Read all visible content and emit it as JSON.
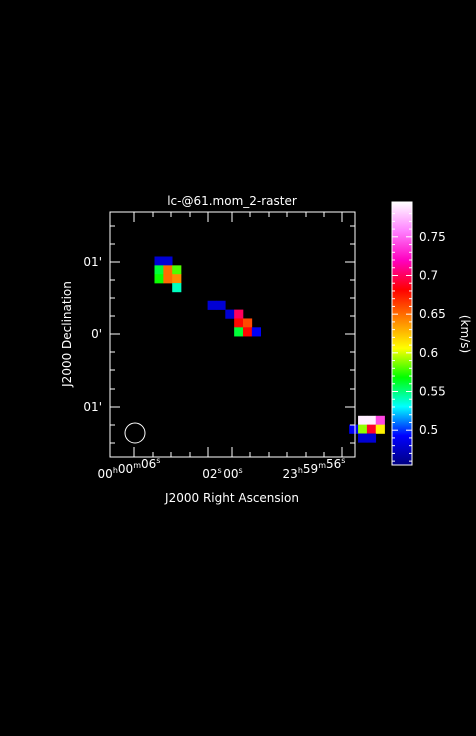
{
  "chart_data": {
    "type": "heatmap",
    "title": "lc-@61.mom_2-raster",
    "xlabel": "J2000 Right Ascension",
    "ylabel": "J2000 Declination",
    "x_ticks": [
      {
        "h": "00",
        "m": "00",
        "s": "06",
        "pos": 0
      },
      {
        "h": "",
        "m": "",
        "s": "02",
        "pos": 1
      },
      {
        "h": "",
        "m": "",
        "s": "00",
        "pos": 2
      },
      {
        "h": "23",
        "m": "59",
        "s": "56",
        "pos": 3
      }
    ],
    "y_ticks": [
      {
        "label": "01'",
        "pos": 1
      },
      {
        "label": "0'",
        "pos": 0
      },
      {
        "label": "01'",
        "pos": -1
      }
    ],
    "colorbar": {
      "label": "(km/s)",
      "min": 0.455,
      "max": 0.795,
      "ticks": [
        {
          "value": 0.5,
          "label": "0.5"
        },
        {
          "value": 0.55,
          "label": "0.55"
        },
        {
          "value": 0.6,
          "label": "0.6"
        },
        {
          "value": 0.65,
          "label": "0.65"
        },
        {
          "value": 0.7,
          "label": "0.7"
        },
        {
          "value": 0.75,
          "label": "0.75"
        }
      ],
      "colors": [
        "#000080",
        "#0000ff",
        "#00ffff",
        "#00ff00",
        "#ffff00",
        "#ff8000",
        "#ff0000",
        "#ff00c0",
        "#ff80ff",
        "#ffffff"
      ]
    },
    "pixels": [
      {
        "col": 0,
        "row": 0,
        "value": 0.48
      },
      {
        "col": 1,
        "row": 0,
        "value": 0.48
      },
      {
        "col": 0,
        "row": 1,
        "value": 0.56
      },
      {
        "col": 1,
        "row": 1,
        "value": 0.65
      },
      {
        "col": 2,
        "row": 1,
        "value": 0.58
      },
      {
        "col": 0,
        "row": 2,
        "value": 0.57
      },
      {
        "col": 1,
        "row": 2,
        "value": 0.65
      },
      {
        "col": 2,
        "row": 2,
        "value": 0.64
      },
      {
        "col": 2,
        "row": 3,
        "value": 0.54
      },
      {
        "col": 6,
        "row": 5,
        "value": 0.48
      },
      {
        "col": 7,
        "row": 5,
        "value": 0.48
      },
      {
        "col": 8,
        "row": 6,
        "value": 0.48
      },
      {
        "col": 9,
        "row": 6,
        "value": 0.7
      },
      {
        "col": 9,
        "row": 7,
        "value": 0.68
      },
      {
        "col": 10,
        "row": 7,
        "value": 0.66
      },
      {
        "col": 9,
        "row": 8,
        "value": 0.56
      },
      {
        "col": 10,
        "row": 8,
        "value": 0.68
      },
      {
        "col": 11,
        "row": 8,
        "value": 0.49
      },
      {
        "col": 23,
        "row": 18,
        "value": 0.79
      },
      {
        "col": 24,
        "row": 18,
        "value": 0.79
      },
      {
        "col": 25,
        "row": 18,
        "value": 0.74
      },
      {
        "col": 22,
        "row": 19,
        "value": 0.49
      },
      {
        "col": 23,
        "row": 19,
        "value": 0.59
      },
      {
        "col": 24,
        "row": 19,
        "value": 0.69
      },
      {
        "col": 25,
        "row": 19,
        "value": 0.61
      },
      {
        "col": 23,
        "row": 20,
        "value": 0.48
      },
      {
        "col": 24,
        "row": 20,
        "value": 0.48
      }
    ],
    "beam": {
      "shape": "circle"
    },
    "grid": false
  }
}
